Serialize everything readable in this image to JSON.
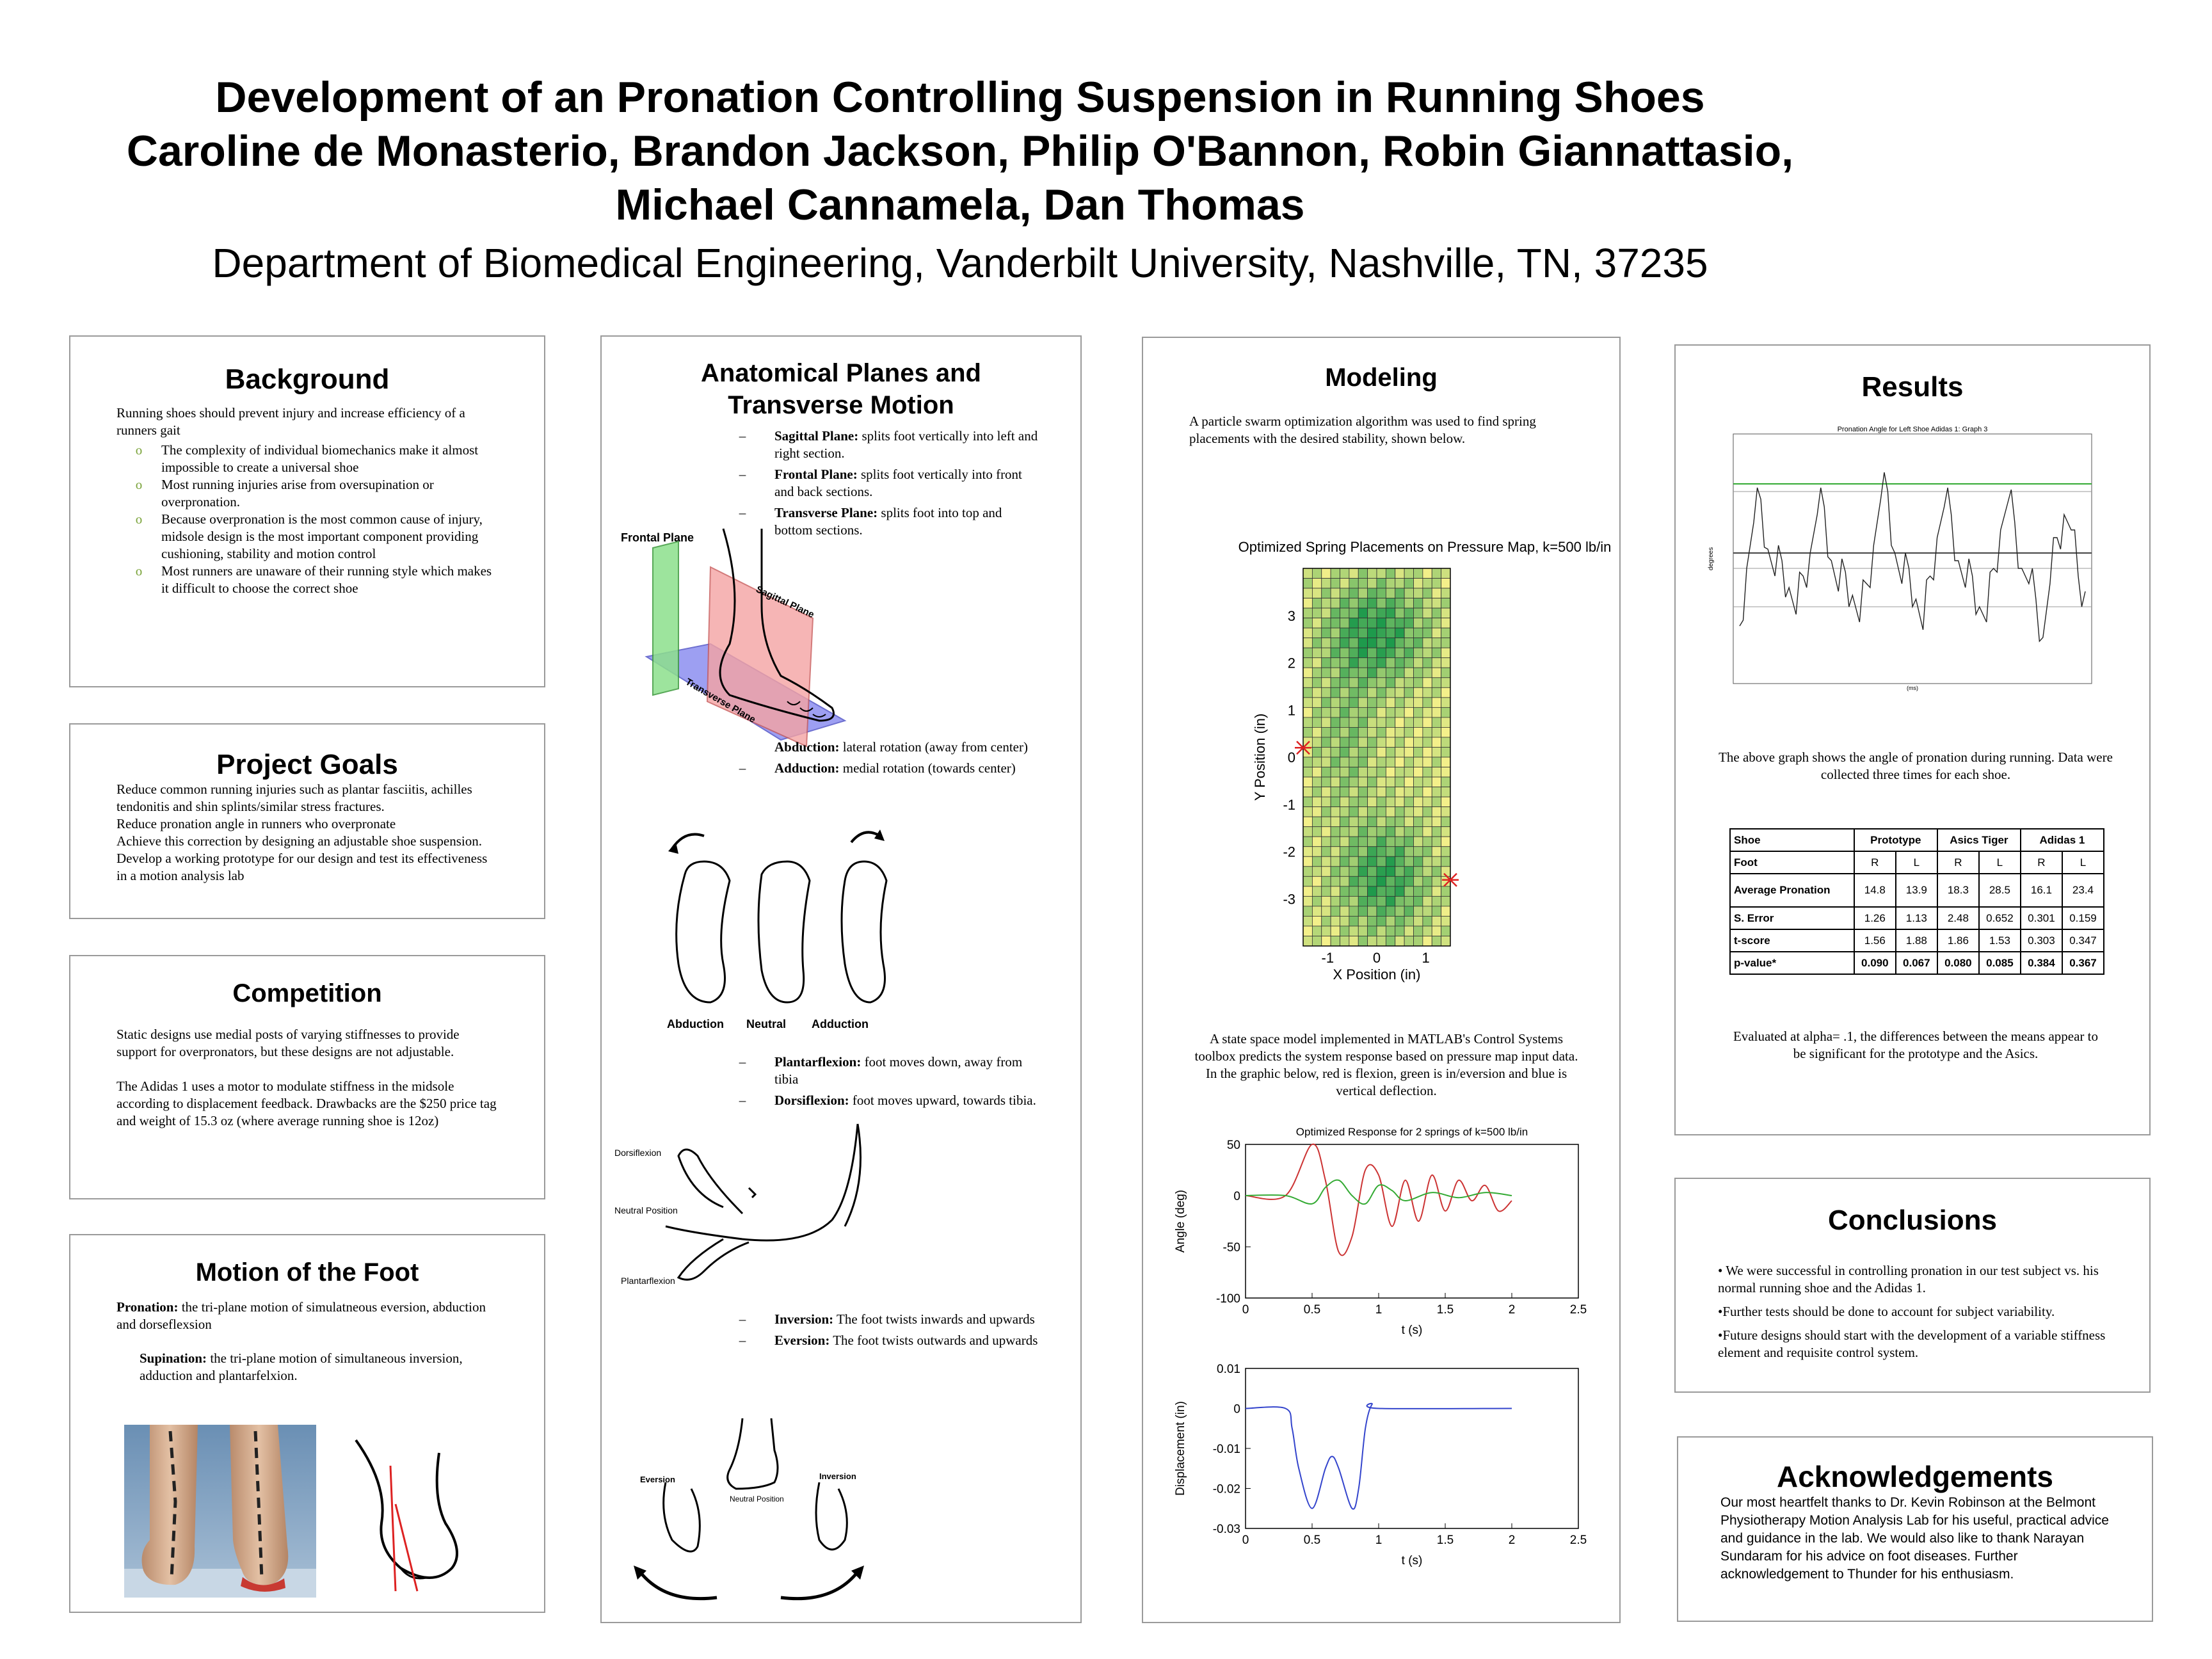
{
  "header": {
    "title": "Development of an Pronation Controlling Suspension in Running Shoes",
    "authors": "Caroline de Monasterio, Brandon Jackson, Philip O'Bannon, Robin Giannattasio, Michael Cannamela, Dan Thomas",
    "affiliation": "Department of Biomedical Engineering, Vanderbilt University, Nashville, TN, 37235"
  },
  "background": {
    "title": "Background",
    "intro": "Running shoes should prevent injury and increase efficiency of a runners gait",
    "bullets": [
      "The complexity of individual biomechanics make it almost impossible to create a universal shoe",
      "Most running injuries arise from oversupination or overpronation.",
      "Because overpronation is the most common cause of injury, midsole design is the most important component providing cushioning, stability and motion control",
      "Most runners are unaware of their running style which makes it difficult to choose the correct shoe"
    ],
    "bullet_marker": "o"
  },
  "goals": {
    "title": "Project Goals",
    "lines": [
      "Reduce common running injuries such as plantar fasciitis, achilles tendonitis and shin splints/similar stress fractures.",
      "Reduce pronation angle in runners who overpronate",
      "Achieve this correction by designing an adjustable shoe suspension.",
      "Develop a working prototype for our design and test its effectiveness in a motion analysis lab"
    ]
  },
  "competition": {
    "title": "Competition",
    "p1": "Static designs use medial posts of varying stiffnesses to provide support for overpronators, but these designs are not adjustable.",
    "p2": "The Adidas 1 uses a motor to modulate stiffness in the midsole according to displacement feedback. Drawbacks are the $250 price tag and weight of 15.3 oz (where average running shoe is 12oz)"
  },
  "motion": {
    "title": "Motion of the Foot",
    "pronation_term": "Pronation:",
    "pronation_text": " the tri-plane motion of simulatneous eversion, abduction and dorseflexsion",
    "supination_term": "Supination:",
    "supination_text": " the tri-plane motion of simultaneous inversion, adduction and plantarfelxion."
  },
  "planes": {
    "title": "Anatomical Planes and Transverse Motion",
    "dash": "–",
    "items1": [
      {
        "term": "Sagittal Plane:",
        "text": " splits foot vertically into left and right section."
      },
      {
        "term": "Frontal Plane:",
        "text": " splits foot vertically into front and back sections."
      },
      {
        "term": "Transverse Plane:",
        "text": " splits foot into top and bottom sections."
      }
    ],
    "items2": [
      {
        "term": "Abduction:",
        "text": " lateral rotation (away from center)"
      },
      {
        "term": "Adduction:",
        "text": " medial rotation (towards center)"
      }
    ],
    "items3": [
      {
        "term": "Plantarflexion:",
        "text": " foot moves down, away from tibia"
      },
      {
        "term": "Dorsiflexion:",
        "text": " foot moves upward, towards tibia."
      }
    ],
    "items4": [
      {
        "term": "Inversion:",
        "text": " The foot twists inwards and upwards"
      },
      {
        "term": "Eversion:",
        "text": " The foot twists outwards and upwards"
      }
    ],
    "fig1": {
      "frontal": "Frontal Plane",
      "sagittal": "Sagittal Plane",
      "transverse": "Transverse Plane"
    },
    "fig2": {
      "abduction": "Abduction",
      "neutral": "Neutral",
      "adduction": "Adduction"
    },
    "fig3": {
      "dorsiflexion": "Dorsiflexion",
      "neutral": "Neutral Position",
      "plantarflexion": "Plantarflexion"
    },
    "fig4": {
      "eversion": "Eversion",
      "inversion": "Inversion",
      "neutral": "Neutral Position"
    }
  },
  "modeling": {
    "title": "Modeling",
    "p1": "A particle swarm optimization algorithm was used to find spring placements with the desired stability, shown below.",
    "p2": "A state space model implemented in MATLAB's Control Systems toolbox predicts the system response based on pressure map input data. In the graphic below, red is flexion, green is in/eversion and blue is vertical deflection."
  },
  "results": {
    "title": "Results",
    "caption": "The above graph shows the angle of pronation during running. Data were collected three times for each shoe.",
    "table": {
      "header": [
        "Shoe",
        "Prototype",
        "Asics Tiger",
        "Adidas 1"
      ],
      "rows": [
        [
          "Foot",
          "R",
          "L",
          "R",
          "L",
          "R",
          "L"
        ],
        [
          "Average Pronation",
          "14.8",
          "13.9",
          "18.3",
          "28.5",
          "16.1",
          "23.4"
        ],
        [
          "S. Error",
          "1.26",
          "1.13",
          "2.48",
          "0.652",
          "0.301",
          "0.159"
        ],
        [
          "t-score",
          "1.56",
          "1.88",
          "1.86",
          "1.53",
          "0.303",
          "0.347"
        ],
        [
          "p-value*",
          "0.090",
          "0.067",
          "0.080",
          "0.085",
          "0.384",
          "0.367"
        ]
      ]
    },
    "note": "Evaluated at alpha= .1, the differences between the means appear to be significant for the prototype and the Asics."
  },
  "conclusions": {
    "title": "Conclusions",
    "items": [
      "• We were successful in controlling pronation in our test subject vs. his normal running shoe and the Adidas 1.",
      "•Further tests should be done to account for subject variability.",
      "•Future designs should start with the development of a variable stiffness element and requisite control system."
    ]
  },
  "acknowledgements": {
    "title": "Acknowledgements",
    "text": "Our most heartfelt thanks to Dr. Kevin Robinson at the Belmont Physiotherapy Motion Analysis Lab for his useful, practical advice and guidance in the lab. We would also like to thank Narayan Sundaram for his advice on foot diseases. Further acknowledgement to Thunder for his enthusiasm."
  },
  "chart_data": [
    {
      "type": "heatmap",
      "title": "Optimized Spring Placements on Pressure Map, k=500 lb/in",
      "xlabel": "X Position (in)",
      "ylabel": "Y Position (in)",
      "xticks": [
        "-1",
        "0",
        "1"
      ],
      "yticks": [
        "3",
        "2",
        "1",
        "0",
        "-1",
        "-2",
        "-3"
      ],
      "xlim": [
        -1.5,
        1.5
      ],
      "ylim": [
        -4,
        4
      ],
      "spring_markers": [
        {
          "x": -1.5,
          "y": 0.2
        },
        {
          "x": 1.5,
          "y": -2.6
        }
      ],
      "colors": {
        "low": "#f4f08a",
        "high": "#1e9a4c"
      },
      "grid": true
    },
    {
      "type": "line",
      "title": "Optimized Response for 2 springs of k=500 lb/in",
      "xlabel": "t (s)",
      "ylabel": "Angle (deg)",
      "xticks": [
        "0",
        "0.5",
        "1",
        "1.5",
        "2",
        "2.5"
      ],
      "yticks": [
        "50",
        "0",
        "-50",
        "-100"
      ],
      "xlim": [
        0,
        2.5
      ],
      "ylim": [
        -100,
        50
      ],
      "series": [
        {
          "color": "#cc3333",
          "x": [
            0,
            0.3,
            0.5,
            0.6,
            0.7,
            0.8,
            0.9,
            1.0,
            1.1,
            1.2,
            1.3,
            1.4,
            1.5,
            1.6,
            1.7,
            1.8,
            1.9,
            2.0
          ],
          "y": [
            0,
            0,
            50,
            15,
            -55,
            -40,
            25,
            20,
            -30,
            15,
            -25,
            20,
            -15,
            15,
            -5,
            10,
            -15,
            -5
          ]
        },
        {
          "color": "#33aa33",
          "x": [
            0,
            0.3,
            0.5,
            0.6,
            0.7,
            0.8,
            0.9,
            1.0,
            1.1,
            1.2,
            1.4,
            1.6,
            1.8,
            2.0
          ],
          "y": [
            0,
            0,
            -8,
            8,
            15,
            0,
            -8,
            10,
            5,
            -5,
            3,
            -2,
            3,
            0
          ]
        }
      ]
    },
    {
      "type": "line",
      "xlabel": "t (s)",
      "ylabel": "Displacement (in)",
      "xticks": [
        "0",
        "0.5",
        "1",
        "1.5",
        "2",
        "2.5"
      ],
      "yticks": [
        "0.01",
        "0",
        "-0.01",
        "-0.02",
        "-0.03"
      ],
      "xlim": [
        0,
        2.5
      ],
      "ylim": [
        -0.03,
        0.01
      ],
      "series": [
        {
          "color": "#3344cc",
          "x": [
            0,
            0.3,
            0.35,
            0.4,
            0.5,
            0.6,
            0.65,
            0.7,
            0.8,
            0.85,
            0.9,
            0.95,
            1.0,
            2.0
          ],
          "y": [
            0,
            0,
            -0.005,
            -0.015,
            -0.025,
            -0.015,
            -0.012,
            -0.015,
            -0.025,
            -0.02,
            -0.005,
            0.001,
            0,
            0
          ]
        }
      ]
    },
    {
      "type": "line",
      "title": "Pronation Angle for Left Shoe Adidas 1: Graph 3",
      "ylabel": "degrees",
      "xlabel": "(ms)",
      "series": [
        {
          "color": "#222222",
          "y": [
            -5,
            10,
            22,
            28,
            15,
            8,
            12,
            5,
            -2,
            8,
            14,
            24,
            26,
            12,
            4,
            9,
            3,
            -4,
            6,
            16,
            28,
            30,
            14,
            6,
            10,
            2,
            -6,
            8,
            18,
            26,
            24,
            12,
            5,
            8,
            0,
            -4,
            10,
            20,
            27,
            22,
            10,
            6,
            2,
            -8,
            6,
            18,
            24,
            20,
            8,
            4
          ]
        }
      ],
      "reference_lines": [
        {
          "color": "#33aa33",
          "y": 20
        }
      ]
    }
  ]
}
